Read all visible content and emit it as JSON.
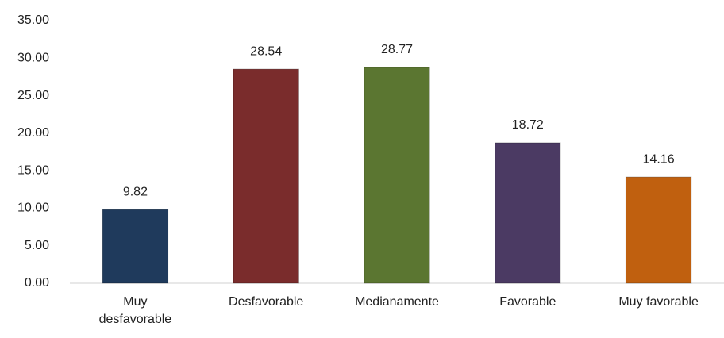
{
  "chart_data": {
    "type": "bar",
    "categories": [
      "Muy desfavorable",
      "Desfavorable",
      "Medianamente",
      "Favorable",
      "Muy favorable"
    ],
    "values": [
      9.82,
      28.54,
      28.77,
      18.72,
      14.16
    ],
    "colors": [
      "#1f3a5c",
      "#7a2c2c",
      "#5b7631",
      "#4b3a63",
      "#c0600f"
    ],
    "ylim": [
      0,
      35
    ],
    "yticks": [
      {
        "value": 0,
        "label": "0.00"
      },
      {
        "value": 5,
        "label": "5.00"
      },
      {
        "value": 10,
        "label": "10.00"
      },
      {
        "value": 15,
        "label": "15.00"
      },
      {
        "value": 20,
        "label": "20.00"
      },
      {
        "value": 25,
        "label": "25.00"
      },
      {
        "value": 30,
        "label": "30.00"
      },
      {
        "value": 35,
        "label": "35.00"
      }
    ],
    "grid": false
  }
}
